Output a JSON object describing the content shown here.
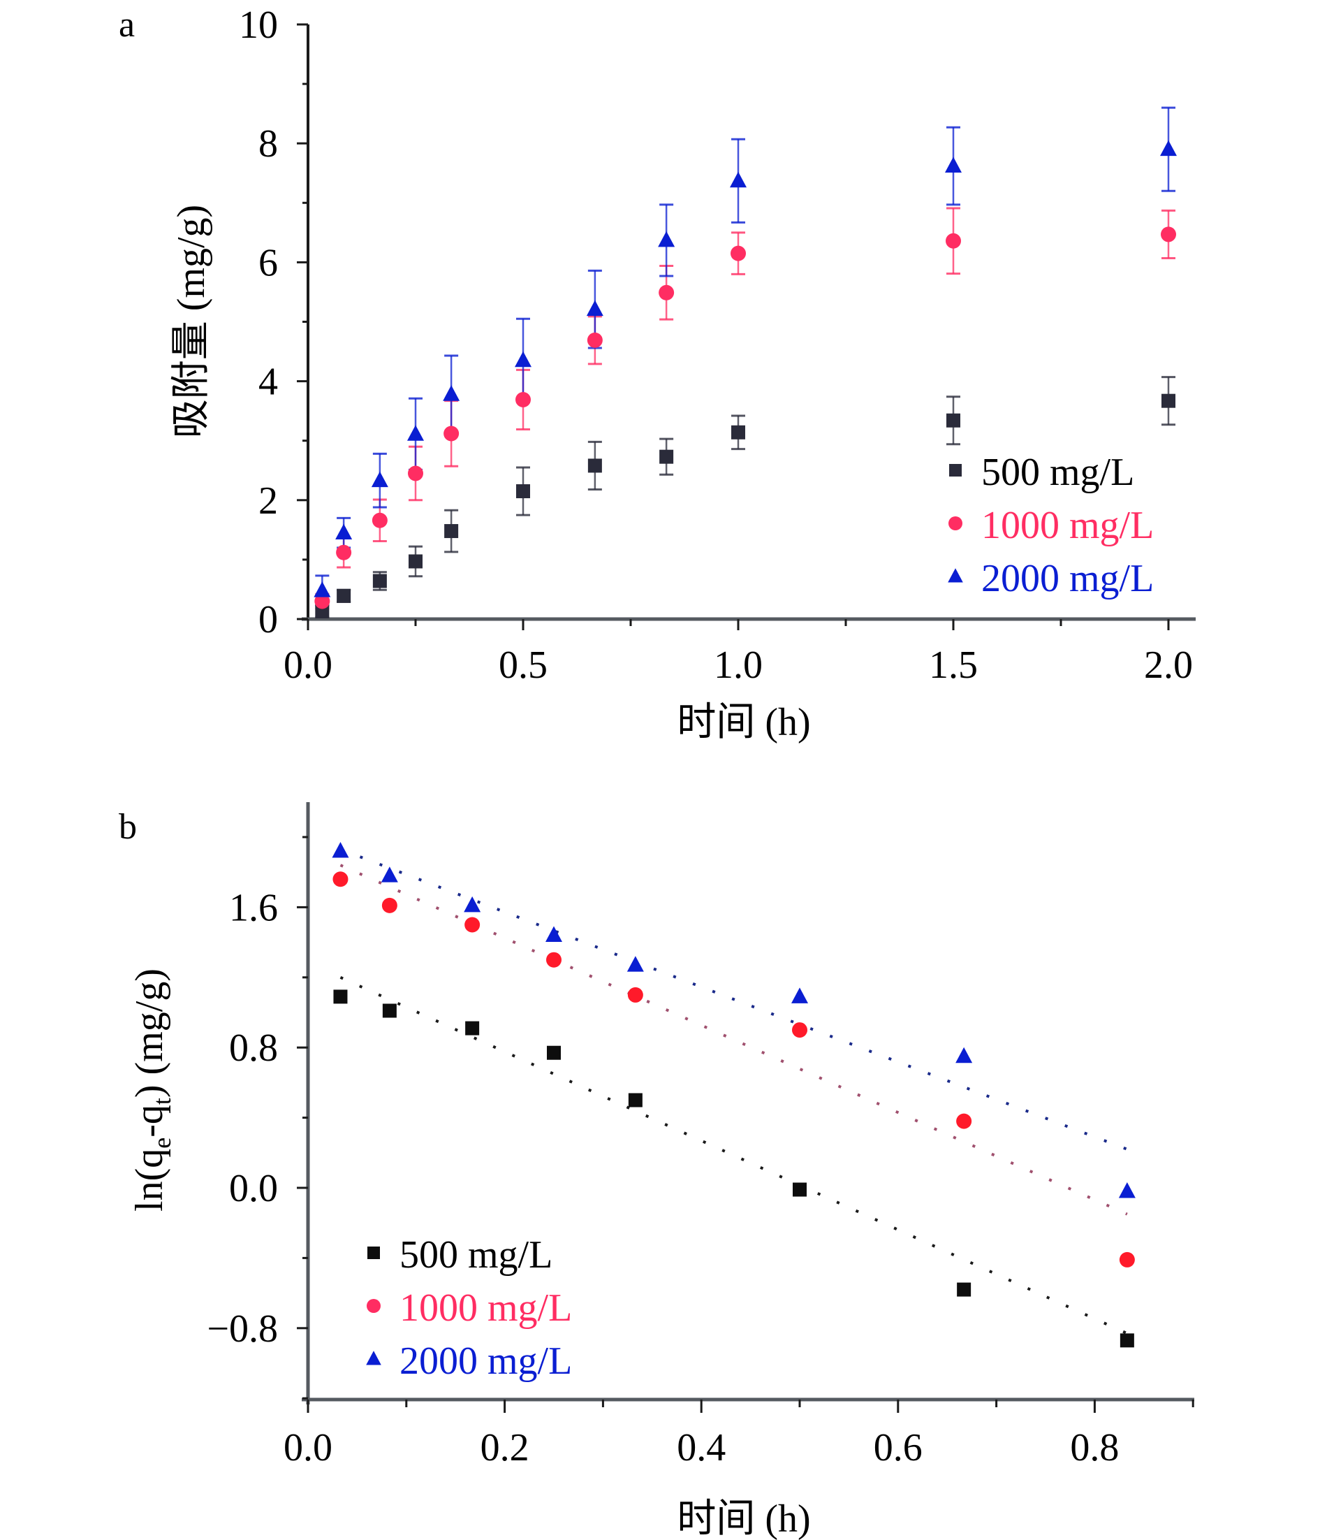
{
  "colors": {
    "500": "#2a2b3a",
    "1000": "#ff2d62",
    "2000": "#0a1ed2",
    "fit_500": "#1a1a1a",
    "fit_1000": "#a0506e",
    "fit_2000": "#1a2a8a"
  },
  "chart_data": [
    {
      "panel": "a",
      "type": "scatter",
      "title": "",
      "xlabel": "时间 (h)",
      "ylabel": "吸附量 (mg/g)",
      "xlim": [
        0,
        2.0
      ],
      "ylim": [
        0,
        10
      ],
      "xticks": [
        "0.0",
        "0.5",
        "1.0",
        "1.5",
        "2.0"
      ],
      "xtick_values": [
        0,
        0.5,
        1.0,
        1.5,
        2.0
      ],
      "xminor": [
        0.25,
        0.75,
        1.25,
        1.75
      ],
      "yticks": [
        "0",
        "2",
        "4",
        "6",
        "8",
        "10"
      ],
      "ytick_values": [
        0,
        2,
        4,
        6,
        8,
        10
      ],
      "yminor": [
        1,
        3,
        5,
        7,
        9
      ],
      "grid": false,
      "legend_position": "lower-right",
      "x": [
        0.033,
        0.083,
        0.167,
        0.25,
        0.333,
        0.5,
        0.667,
        0.833,
        1.0,
        1.5,
        2.0
      ],
      "series": [
        {
          "name": "500 mg/L",
          "marker": "square",
          "color_key": "500",
          "values": [
            0.13,
            0.39,
            0.64,
            0.97,
            1.48,
            2.15,
            2.58,
            2.73,
            3.14,
            3.34,
            3.67
          ],
          "errors": [
            0.1,
            0.1,
            0.15,
            0.25,
            0.35,
            0.4,
            0.4,
            0.3,
            0.28,
            0.4,
            0.4
          ]
        },
        {
          "name": "1000 mg/L",
          "marker": "circle",
          "color_key": "1000",
          "values": [
            0.3,
            1.12,
            1.66,
            2.45,
            3.12,
            3.69,
            4.69,
            5.49,
            6.15,
            6.36,
            6.47
          ],
          "errors": [
            0.12,
            0.25,
            0.35,
            0.45,
            0.55,
            0.5,
            0.4,
            0.45,
            0.35,
            0.55,
            0.4
          ]
        },
        {
          "name": "2000 mg/L",
          "marker": "triangle",
          "color_key": "2000",
          "values": [
            0.48,
            1.45,
            2.33,
            3.11,
            3.78,
            4.35,
            5.21,
            6.37,
            7.37,
            7.62,
            7.9
          ],
          "errors": [
            0.25,
            0.25,
            0.45,
            0.6,
            0.65,
            0.7,
            0.65,
            0.6,
            0.7,
            0.65,
            0.7
          ]
        }
      ]
    },
    {
      "panel": "b",
      "type": "scatter",
      "title": "",
      "xlabel": "时间 (h)",
      "ylabel_main": "ln(q",
      "ylabel_sub1": "e",
      "ylabel_mid": "-q",
      "ylabel_sub2": "t",
      "ylabel_end": ") (mg/g)",
      "ylabel": "ln(qe-qt) (mg/g)",
      "xlim": [
        0,
        0.9
      ],
      "ylim": [
        -1.2,
        2.2
      ],
      "xticks": [
        "0.0",
        "0.2",
        "0.4",
        "0.6",
        "0.8"
      ],
      "xtick_values": [
        0,
        0.2,
        0.4,
        0.6,
        0.8
      ],
      "xminor": [
        0.1,
        0.3,
        0.5,
        0.7,
        0.9
      ],
      "yticks": [
        "−0.8",
        "0.0",
        "0.8",
        "1.6"
      ],
      "ytick_values": [
        -0.8,
        0,
        0.8,
        1.6
      ],
      "yminor": [
        -1.2,
        -0.4,
        0.4,
        1.2,
        2.0
      ],
      "grid": false,
      "legend_position": "lower-left",
      "x": [
        0.033,
        0.083,
        0.167,
        0.25,
        0.333,
        0.5,
        0.667,
        0.833
      ],
      "series": [
        {
          "name": "500 mg/L",
          "marker": "square",
          "color_key": "500",
          "values": [
            1.09,
            1.01,
            0.91,
            0.77,
            0.5,
            -0.01,
            -0.58,
            -0.87
          ],
          "fit": {
            "x": [
              0.033,
              0.833
            ],
            "y": [
              1.2,
              -0.83
            ],
            "style": "dotted"
          }
        },
        {
          "name": "1000 mg/L",
          "marker": "circle",
          "color_key": "1000",
          "values": [
            1.76,
            1.61,
            1.5,
            1.3,
            1.1,
            0.9,
            0.38,
            -0.41
          ],
          "fit": {
            "x": [
              0.033,
              0.833
            ],
            "y": [
              1.84,
              -0.15
            ],
            "style": "dotted"
          }
        },
        {
          "name": "2000 mg/L",
          "marker": "triangle",
          "color_key": "2000",
          "values": [
            1.92,
            1.78,
            1.61,
            1.44,
            1.27,
            1.09,
            0.75,
            -0.02
          ],
          "fit": {
            "x": [
              0.033,
              0.833
            ],
            "y": [
              1.93,
              0.22
            ],
            "style": "dotted"
          }
        }
      ]
    }
  ]
}
